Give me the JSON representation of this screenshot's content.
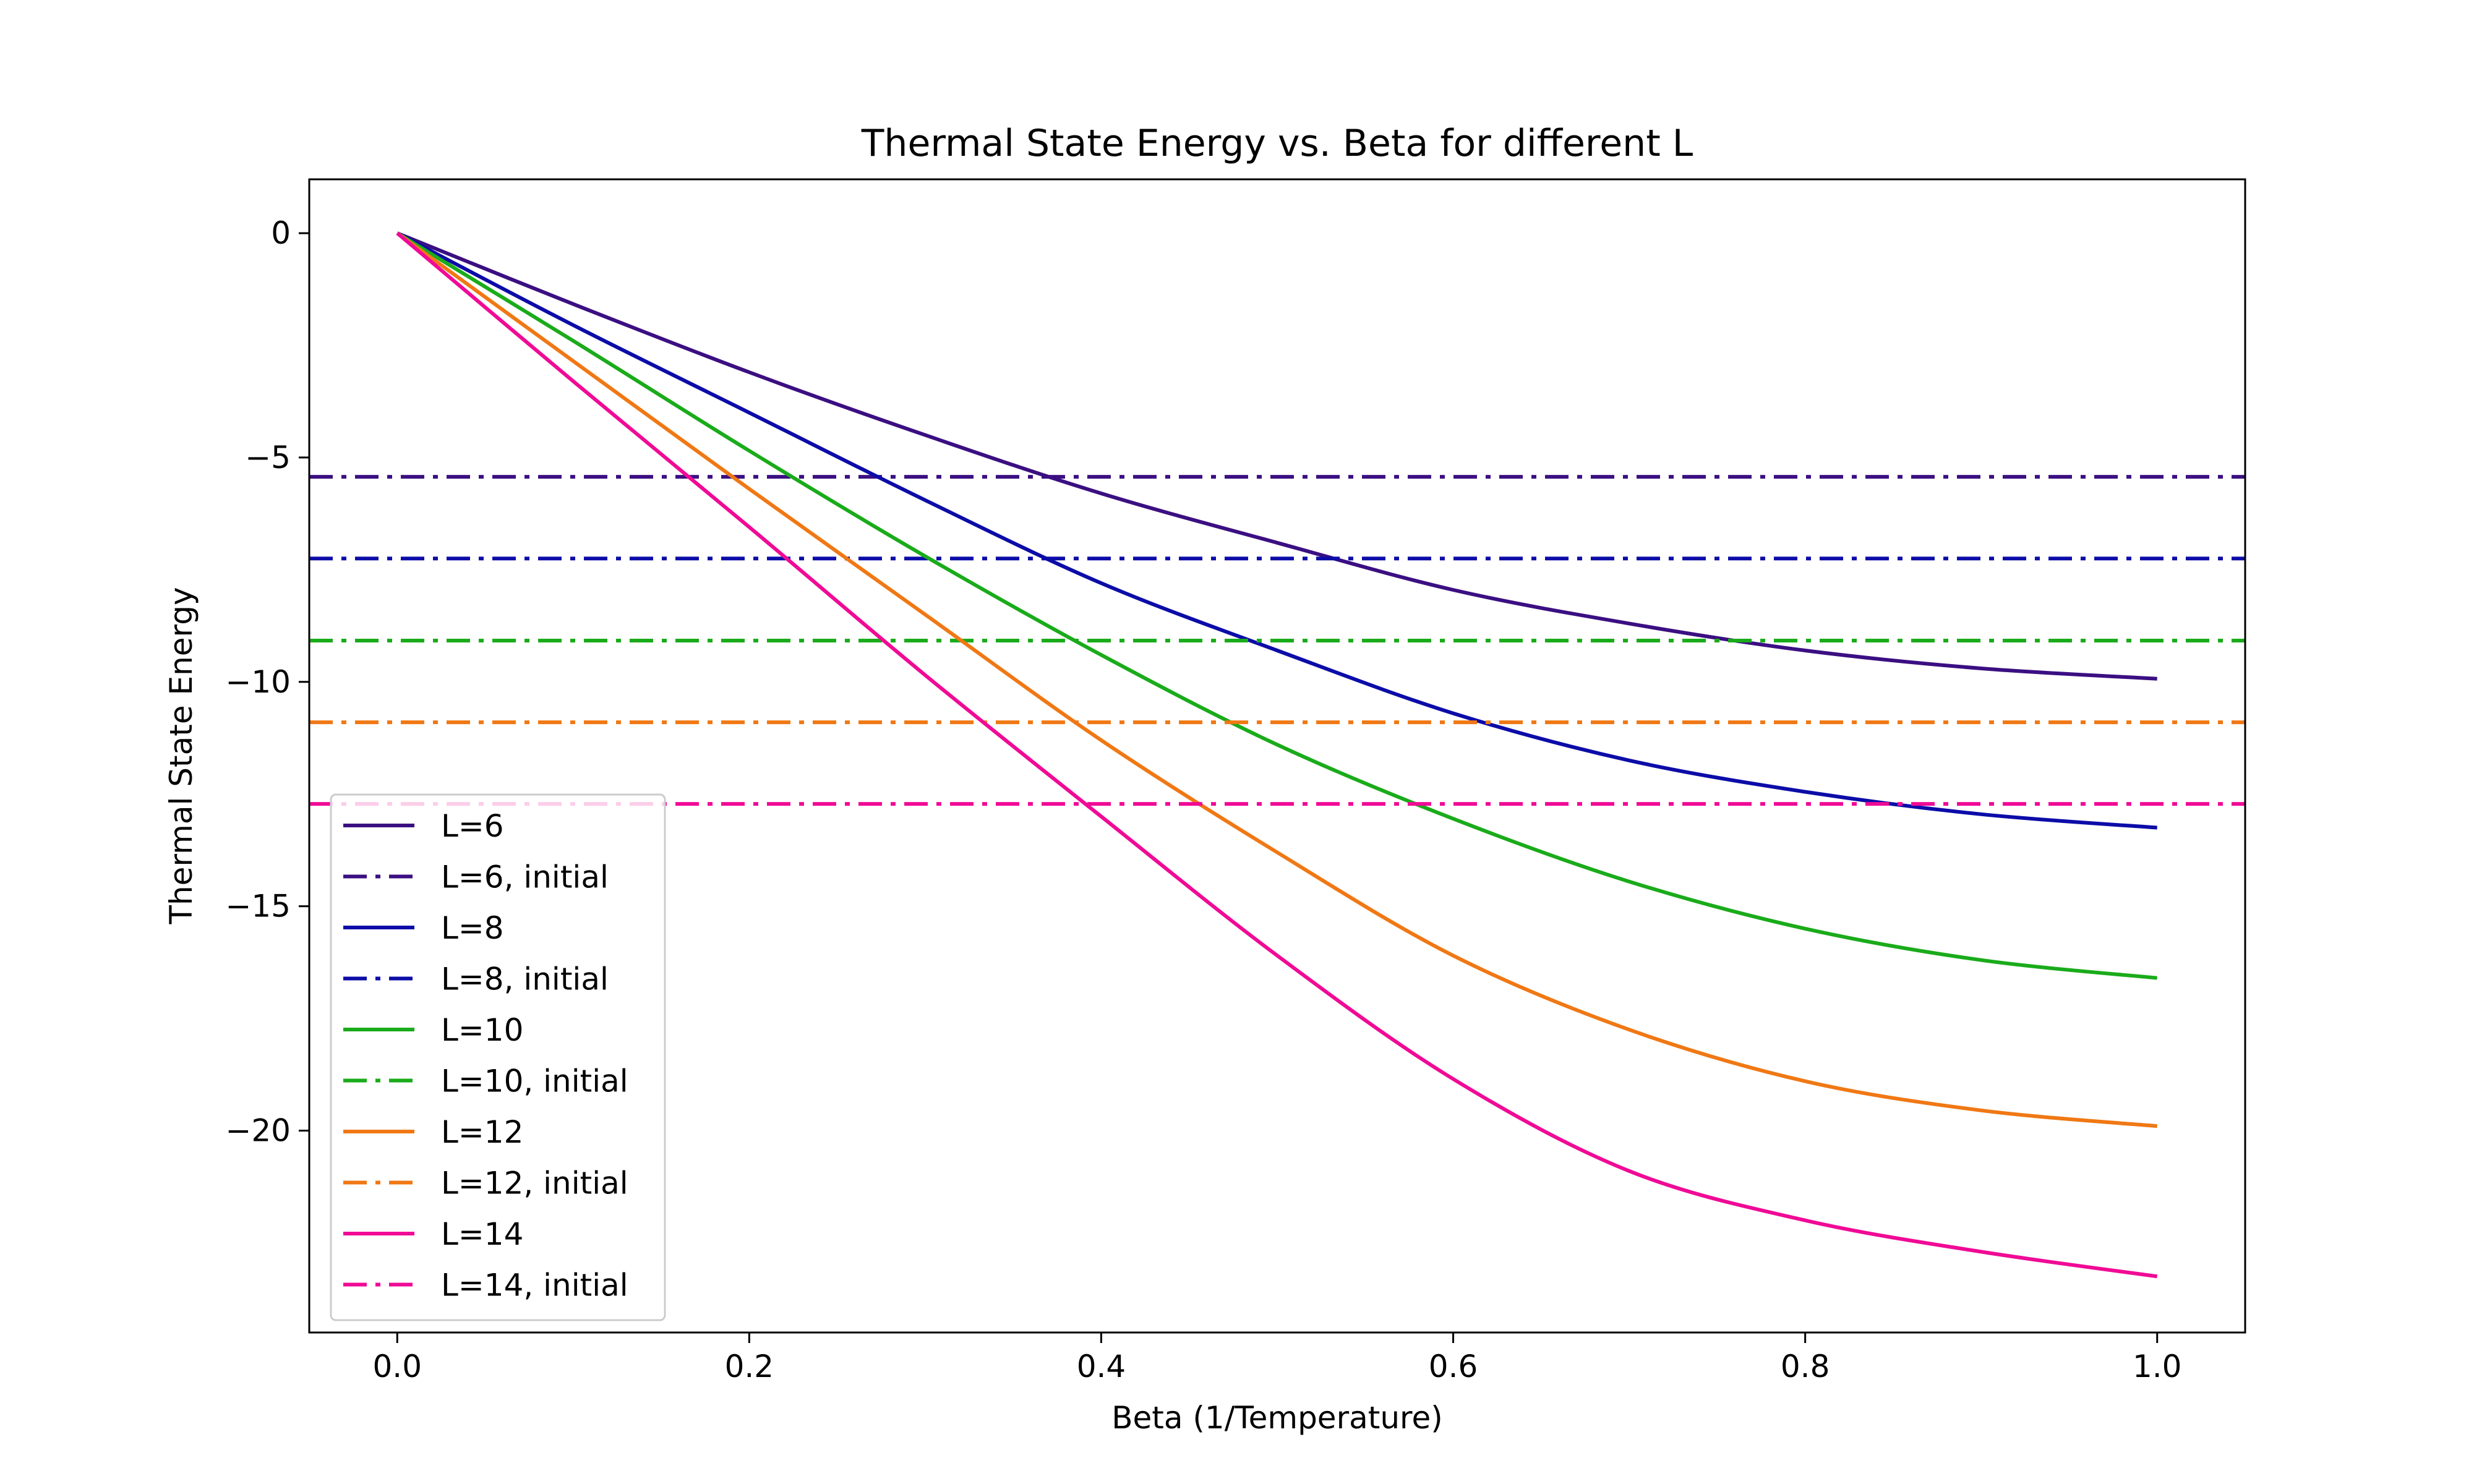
{
  "chart_data": {
    "type": "line",
    "title": "Thermal State Energy vs. Beta for different L",
    "xlabel": "Beta (1/Temperature)",
    "ylabel": "Thermal State Energy",
    "xlim": [
      -0.05,
      1.05
    ],
    "ylim": [
      -24.5,
      1.2
    ],
    "xticks": [
      0.0,
      0.2,
      0.4,
      0.6,
      0.8,
      1.0
    ],
    "xtick_labels": [
      "0.0",
      "0.2",
      "0.4",
      "0.6",
      "0.8",
      "1.0"
    ],
    "yticks": [
      0,
      -5,
      -10,
      -15,
      -20
    ],
    "ytick_labels": [
      "0",
      "−5",
      "−10",
      "−15",
      "−20"
    ],
    "grid": false,
    "legend_position": "lower-left",
    "x": [
      0.0,
      0.1,
      0.2,
      0.3,
      0.4,
      0.5,
      0.6,
      0.7,
      0.8,
      0.9,
      1.0
    ],
    "series": [
      {
        "name": "L=6",
        "style": "solid",
        "color": "#3b0f82",
        "values": [
          0,
          -1.58,
          -3.1,
          -4.5,
          -5.8,
          -6.9,
          -7.95,
          -8.7,
          -9.3,
          -9.7,
          -9.93
        ]
      },
      {
        "name": "L=6, initial",
        "style": "dashdot",
        "color": "#3b0f82",
        "constant": -5.43
      },
      {
        "name": "L=8",
        "style": "solid",
        "color": "#0c0ca8",
        "values": [
          0,
          -2.05,
          -4.0,
          -5.95,
          -7.8,
          -9.3,
          -10.7,
          -11.75,
          -12.45,
          -12.95,
          -13.25
        ]
      },
      {
        "name": "L=8, initial",
        "style": "dashdot",
        "color": "#0c0ca8",
        "constant": -7.25
      },
      {
        "name": "L=10",
        "style": "solid",
        "color": "#1aab1a",
        "values": [
          0,
          -2.4,
          -4.85,
          -7.2,
          -9.4,
          -11.4,
          -13.05,
          -14.45,
          -15.5,
          -16.2,
          -16.6
        ]
      },
      {
        "name": "L=10, initial",
        "style": "dashdot",
        "color": "#1aab1a",
        "constant": -9.08
      },
      {
        "name": "L=12",
        "style": "solid",
        "color": "#f07814",
        "values": [
          0,
          -2.85,
          -5.7,
          -8.5,
          -11.3,
          -13.8,
          -16.1,
          -17.75,
          -18.9,
          -19.55,
          -19.9
        ]
      },
      {
        "name": "L=12, initial",
        "style": "dashdot",
        "color": "#f07814",
        "constant": -10.9
      },
      {
        "name": "L=14",
        "style": "solid",
        "color": "#f00a96",
        "values": [
          0,
          -3.3,
          -6.55,
          -9.85,
          -13.0,
          -16.1,
          -18.85,
          -20.9,
          -22.0,
          -22.7,
          -23.25
        ]
      },
      {
        "name": "L=14, initial",
        "style": "dashdot",
        "color": "#f00a96",
        "constant": -12.72
      }
    ]
  }
}
